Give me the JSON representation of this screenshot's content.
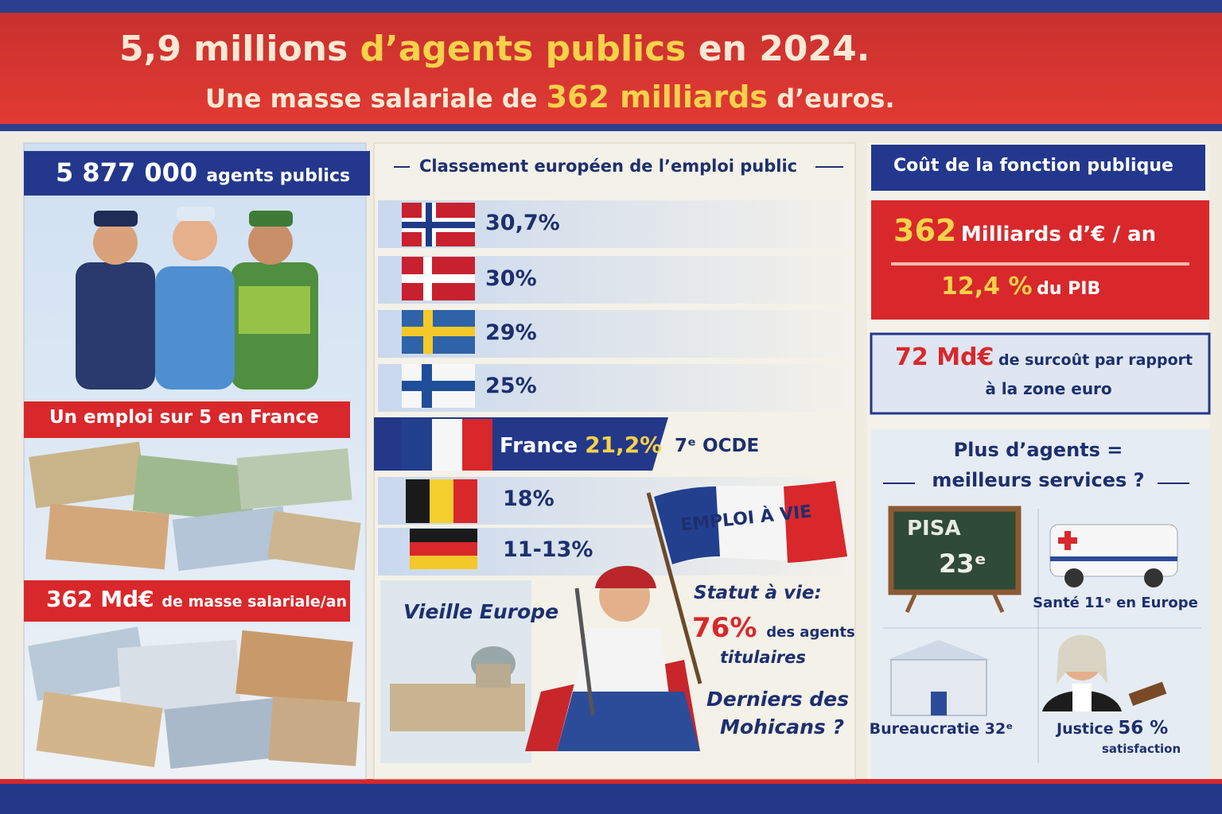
{
  "header": {
    "title": {
      "start": "5,9 millions",
      "highlight": "d’agents publics",
      "end": "en 2024."
    },
    "subtitle": {
      "start": "Une masse salariale de",
      "highlight": "362 milliards",
      "end": "d’euros."
    }
  },
  "left": {
    "agents": {
      "number": "5 877 000",
      "label": "agents publics"
    },
    "share": "Un emploi sur 5 en France",
    "payroll": {
      "number": "362 Md€",
      "label": "de masse salariale/an"
    }
  },
  "center": {
    "title": "Classement européen de l’emploi public",
    "rows": [
      {
        "value": "30,7%"
      },
      {
        "value": "30%"
      },
      {
        "value": "29%"
      },
      {
        "value": "25%"
      },
      {
        "label": "France",
        "value": "21,2%",
        "rank": "7ᵉ OCDE"
      },
      {
        "value": "18%"
      },
      {
        "value": "11-13%"
      }
    ],
    "banner": "EMPLOI À VIE",
    "old_europe": "Vieille Europe",
    "status": {
      "title": "Statut à vie:",
      "number": "76%",
      "label_1": "des agents",
      "label_2": "titulaires"
    },
    "question": {
      "line_1": "Derniers des",
      "line_2": "Mohicans ?"
    }
  },
  "right": {
    "title": "Coût de la fonction publique",
    "cost": {
      "number": "362",
      "label": "Milliards d’€ / an",
      "gdp_number": "12,4 %",
      "gdp_label": "du PIB"
    },
    "extra": {
      "number": "72 Md€",
      "label_1": "de surcoût par rapport",
      "label_2": "à la zone euro"
    },
    "question": {
      "line_1": "Plus d’agents =",
      "line_2": "meilleurs services ?"
    },
    "pisa": {
      "label": "PISA",
      "rank": "23ᵉ"
    },
    "health": "Santé 11ᵉ en Europe",
    "bureaucracy": "Bureaucratie 32ᵉ",
    "justice": {
      "label": "Justice",
      "number": "56 %",
      "sub": "satisfaction"
    }
  }
}
